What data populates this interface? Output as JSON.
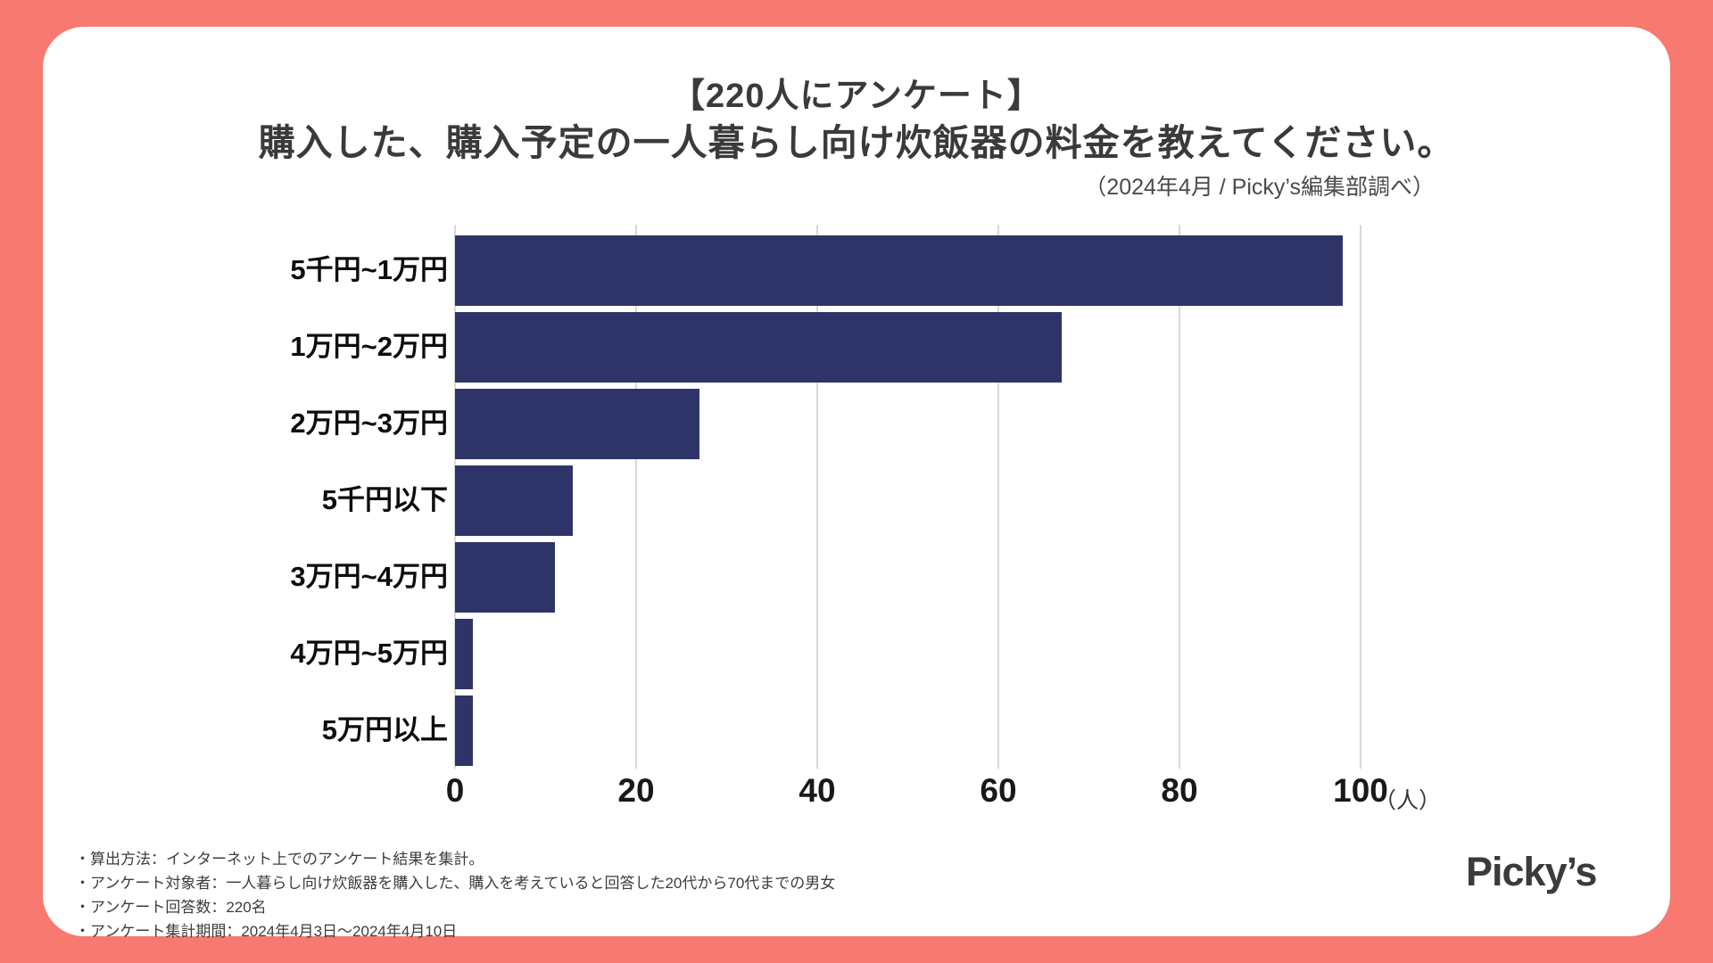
{
  "colors": {
    "background": "#F8796F",
    "card": "#FFFFFF",
    "bar": "#2F3468",
    "grid": "#D9D9D9",
    "title_text": "#3A3A3A",
    "label_text": "#0D0D0D"
  },
  "header": {
    "title_line1": "【220人にアンケート】",
    "title_line2": "購入した、購入予定の一人暮らし向け炊飯器の料金を教えてください。",
    "subtitle": "（2024年4月 / Picky’s編集部調べ）"
  },
  "chart_data": {
    "type": "bar",
    "orientation": "horizontal",
    "title": "【220人にアンケート】購入した、購入予定の一人暮らし向け炊飯器の料金を教えてください。",
    "categories": [
      "5千円~1万円",
      "1万円~2万円",
      "2万円~3万円",
      "5千円以下",
      "3万円~4万円",
      "4万円~5万円",
      "5万円以上"
    ],
    "values": [
      98,
      67,
      27,
      13,
      11,
      2,
      2
    ],
    "total_respondents": 220,
    "xlim": [
      0,
      100
    ],
    "x_ticks": [
      0,
      20,
      40,
      60,
      80,
      100
    ],
    "x_unit": "（人）",
    "grid": true,
    "legend": false,
    "bar_color": "#2F3468"
  },
  "footer": {
    "notes": [
      "・算出方法：インターネット上でのアンケート結果を集計。",
      "・アンケート対象者：一人暮らし向け炊飯器を購入した、購入を考えていると回答した20代から70代までの男女",
      "・アンケート回答数：220名",
      "・アンケート集計期間：2024年4月3日～2024年4月10日"
    ],
    "logo": "Picky’s"
  }
}
